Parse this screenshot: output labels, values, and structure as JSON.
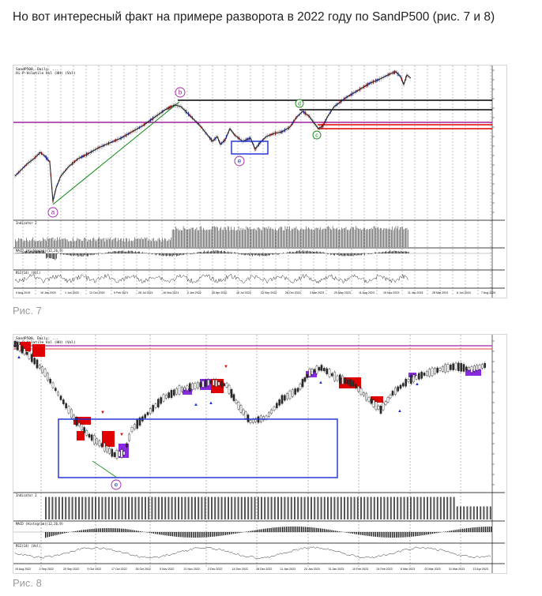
{
  "post": {
    "text": "Но вот интересный факт на примере разворота в 2022 году по SandP500 (рис. 7 и 8)"
  },
  "figures": [
    {
      "id": "fig7",
      "caption": "Рис. 7",
      "header": [
        "SandP500, Daily: ...",
        "Hi-P-Volatile Vol (HH) (Vol)"
      ],
      "wave_labels": [
        "a",
        "b",
        "c",
        "d",
        "e"
      ],
      "indicator_labels": [
        "Indicator 2",
        "MACD (Histogram)(12,26,9)",
        "RSI(14) (Vol)"
      ],
      "x_axis": [
        "9 Aug 2019",
        "16 Jan 2020",
        "1 Jun 2020",
        "13 Oct 2020",
        "5 Feb 2021",
        "28 Jul 2021",
        "16 Nov 2021",
        "3 Jan 2022",
        "25 Apr 2022",
        "15 Jul 2022",
        "22 Sep 2022",
        "28 Oct 2022",
        "3 Mar 2023",
        "25 May 2023",
        "11 Aug 2023",
        "15 Nov 2023",
        "11 Jan 2024",
        "28 Mar 2024",
        "6 Jun 2024",
        "7 Aug 2024"
      ]
    },
    {
      "id": "fig8",
      "caption": "Рис. 8",
      "header": [
        "SandP500, Daily: ...",
        "Hi-P-Volatile Vol (HH) (Vol)"
      ],
      "wave_labels": [
        "e"
      ],
      "indicator_labels": [
        "Indicator 2",
        "MACD (Histogram)(12,26,9)",
        "RSI(14) (Vol)"
      ],
      "x_axis": [
        "19 Aug 2022",
        "2 Sep 2022",
        "20 Sep 2022",
        "5 Oct 2022",
        "17 Oct 2022",
        "26 Oct 2022",
        "9 Nov 2022",
        "21 Nov 2022",
        "2 Dec 2022",
        "14 Dec 2022",
        "28 Dec 2022",
        "11 Jan 2023",
        "20 Jan 2023",
        "31 Jan 2023",
        "10 Feb 2023",
        "24 Feb 2023",
        "8 Mar 2023",
        "20 Mar 2023",
        "31 Mar 2023",
        "13 Apr 2023"
      ]
    }
  ]
}
